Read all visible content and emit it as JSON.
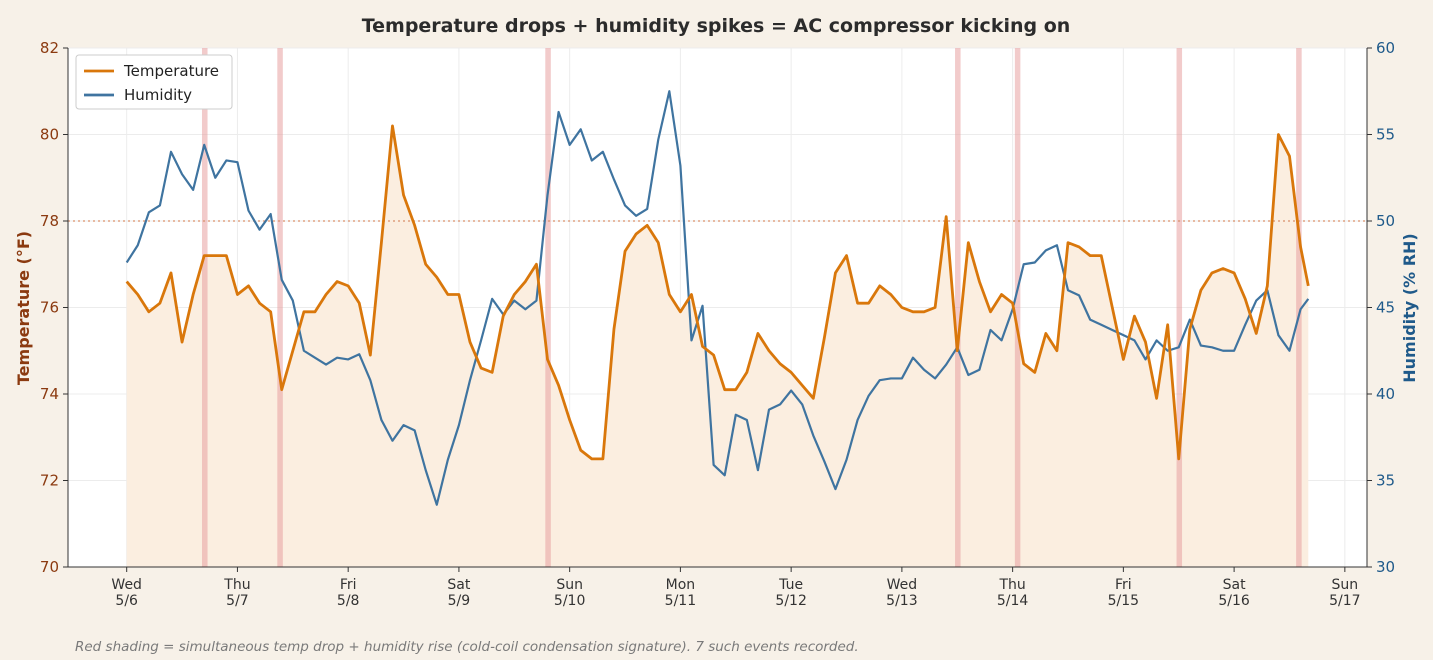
{
  "chart_data": {
    "type": "line",
    "title": "Temperature drops + humidity spikes = AC compressor kicking on",
    "ylabel": "Temperature (°F)",
    "y2label": "Humidity (% RH)",
    "footnote": "Red shading = simultaneous temp drop + humidity rise (cold-coil condensation signature). 7 such events recorded.",
    "x": [
      0,
      0.1,
      0.2,
      0.3,
      0.4,
      0.5,
      0.6,
      0.7,
      0.8,
      0.9,
      1.0,
      1.1,
      1.2,
      1.3,
      1.4,
      1.5,
      1.6,
      1.7,
      1.8,
      1.9,
      2.0,
      2.1,
      2.2,
      2.3,
      2.4,
      2.5,
      2.6,
      2.7,
      2.8,
      2.9,
      3.0,
      3.1,
      3.2,
      3.3,
      3.4,
      3.5,
      3.6,
      3.7,
      3.8,
      3.9,
      4.0,
      4.1,
      4.2,
      4.3,
      4.4,
      4.5,
      4.6,
      4.7,
      4.8,
      4.9,
      5.0,
      5.1,
      5.2,
      5.3,
      5.4,
      5.5,
      5.6,
      5.7,
      5.8,
      5.9,
      6.0,
      6.1,
      6.2,
      6.3,
      6.4,
      6.5,
      6.6,
      6.7,
      6.8,
      6.9,
      7.0,
      7.1,
      7.2,
      7.3,
      7.4,
      7.5,
      7.6,
      7.7,
      7.8,
      7.9,
      8.0,
      8.1,
      8.2,
      8.3,
      8.4,
      8.5,
      8.6,
      8.7,
      8.8,
      8.9,
      9.0,
      9.1,
      9.2,
      9.3,
      9.4,
      9.5,
      9.6,
      9.7,
      9.8,
      9.9,
      10.0,
      10.1,
      10.2,
      10.3,
      10.4,
      10.5,
      10.6,
      10.67
    ],
    "series": [
      {
        "name": "Temperature",
        "color": "#d9770b",
        "fill": "#fbeee0",
        "values": [
          76.6,
          76.3,
          75.9,
          76.1,
          76.8,
          75.2,
          76.3,
          77.2,
          77.2,
          77.2,
          76.3,
          76.5,
          76.1,
          75.9,
          74.1,
          75.0,
          75.9,
          75.9,
          76.3,
          76.6,
          76.5,
          76.1,
          74.9,
          77.5,
          80.2,
          78.6,
          77.9,
          77.0,
          76.7,
          76.3,
          76.3,
          75.2,
          74.6,
          74.5,
          75.8,
          76.3,
          76.6,
          77.0,
          74.8,
          74.2,
          73.4,
          72.7,
          72.5,
          72.5,
          75.5,
          77.3,
          77.7,
          77.9,
          77.5,
          76.3,
          75.9,
          76.3,
          75.1,
          74.9,
          74.1,
          74.1,
          74.5,
          75.4,
          75.0,
          74.7,
          74.5,
          74.2,
          73.9,
          75.3,
          76.8,
          77.2,
          76.1,
          76.1,
          76.5,
          76.3,
          76.0,
          75.9,
          75.9,
          76.0,
          78.1,
          75.0,
          77.5,
          76.6,
          75.9,
          76.3,
          76.1,
          74.7,
          74.5,
          75.4,
          75.0,
          77.5,
          77.4,
          77.2,
          77.2,
          76.0,
          74.8,
          75.8,
          75.2,
          73.9,
          75.6,
          72.5,
          75.5,
          76.4,
          76.8,
          76.9,
          76.8,
          76.2,
          75.4,
          76.5,
          80.0,
          79.5,
          77.4,
          76.5
        ]
      },
      {
        "name": "Humidity",
        "color": "#3f74a0",
        "axis": "y2",
        "values": [
          47.6,
          48.6,
          50.5,
          50.9,
          54.0,
          52.7,
          51.8,
          54.4,
          52.5,
          53.5,
          53.4,
          50.6,
          49.5,
          50.4,
          46.6,
          45.4,
          42.5,
          42.1,
          41.7,
          42.1,
          42.0,
          42.3,
          40.8,
          38.5,
          37.3,
          38.2,
          37.9,
          35.6,
          33.6,
          36.2,
          38.2,
          40.8,
          43.1,
          45.5,
          44.6,
          45.4,
          44.9,
          45.4,
          51.5,
          56.3,
          54.4,
          55.3,
          53.5,
          54.0,
          52.4,
          50.9,
          50.3,
          50.7,
          54.7,
          57.5,
          53.2,
          43.1,
          45.1,
          35.9,
          35.3,
          38.8,
          38.5,
          35.6,
          39.1,
          39.4,
          40.2,
          39.4,
          37.6,
          36.1,
          34.5,
          36.2,
          38.5,
          39.9,
          40.8,
          40.9,
          40.9,
          42.1,
          41.4,
          40.9,
          41.7,
          42.7,
          41.1,
          41.4,
          43.7,
          43.1,
          44.9,
          47.5,
          47.6,
          48.3,
          48.6,
          46.0,
          45.7,
          44.3,
          44.0,
          43.7,
          43.4,
          43.1,
          42.0,
          43.1,
          42.5,
          42.7,
          44.3,
          42.8,
          42.7,
          42.5,
          42.5,
          44.0,
          45.4,
          46.0,
          43.4,
          42.5,
          44.9,
          45.5
        ]
      }
    ],
    "events": [
      [
        0.68,
        0.73
      ],
      [
        1.36,
        1.41
      ],
      [
        3.78,
        3.83
      ],
      [
        7.48,
        7.53
      ],
      [
        8.02,
        8.07
      ],
      [
        9.48,
        9.53
      ],
      [
        10.56,
        10.61
      ]
    ],
    "event_color": "#e8a0a0",
    "threshold": 78,
    "xlim": [
      -0.53,
      11.2
    ],
    "xticks": [
      {
        "value": 0,
        "label": "Wed\n5/6"
      },
      {
        "value": 1,
        "label": "Thu\n5/7"
      },
      {
        "value": 2,
        "label": "Fri\n5/8"
      },
      {
        "value": 3,
        "label": "Sat\n5/9"
      },
      {
        "value": 4,
        "label": "Sun\n5/10"
      },
      {
        "value": 5,
        "label": "Mon\n5/11"
      },
      {
        "value": 6,
        "label": "Tue\n5/12"
      },
      {
        "value": 7,
        "label": "Wed\n5/13"
      },
      {
        "value": 8,
        "label": "Thu\n5/14"
      },
      {
        "value": 9,
        "label": "Fri\n5/15"
      },
      {
        "value": 10,
        "label": "Sat\n5/16"
      },
      {
        "value": 11,
        "label": "Sun\n5/17"
      }
    ],
    "ylim": [
      70,
      82
    ],
    "yticks": [
      70,
      72,
      74,
      76,
      78,
      80,
      82
    ],
    "y2lim": [
      30,
      60
    ],
    "y2ticks": [
      30,
      35,
      40,
      45,
      50,
      55,
      60
    ],
    "grid": true,
    "legend": "upper left"
  }
}
